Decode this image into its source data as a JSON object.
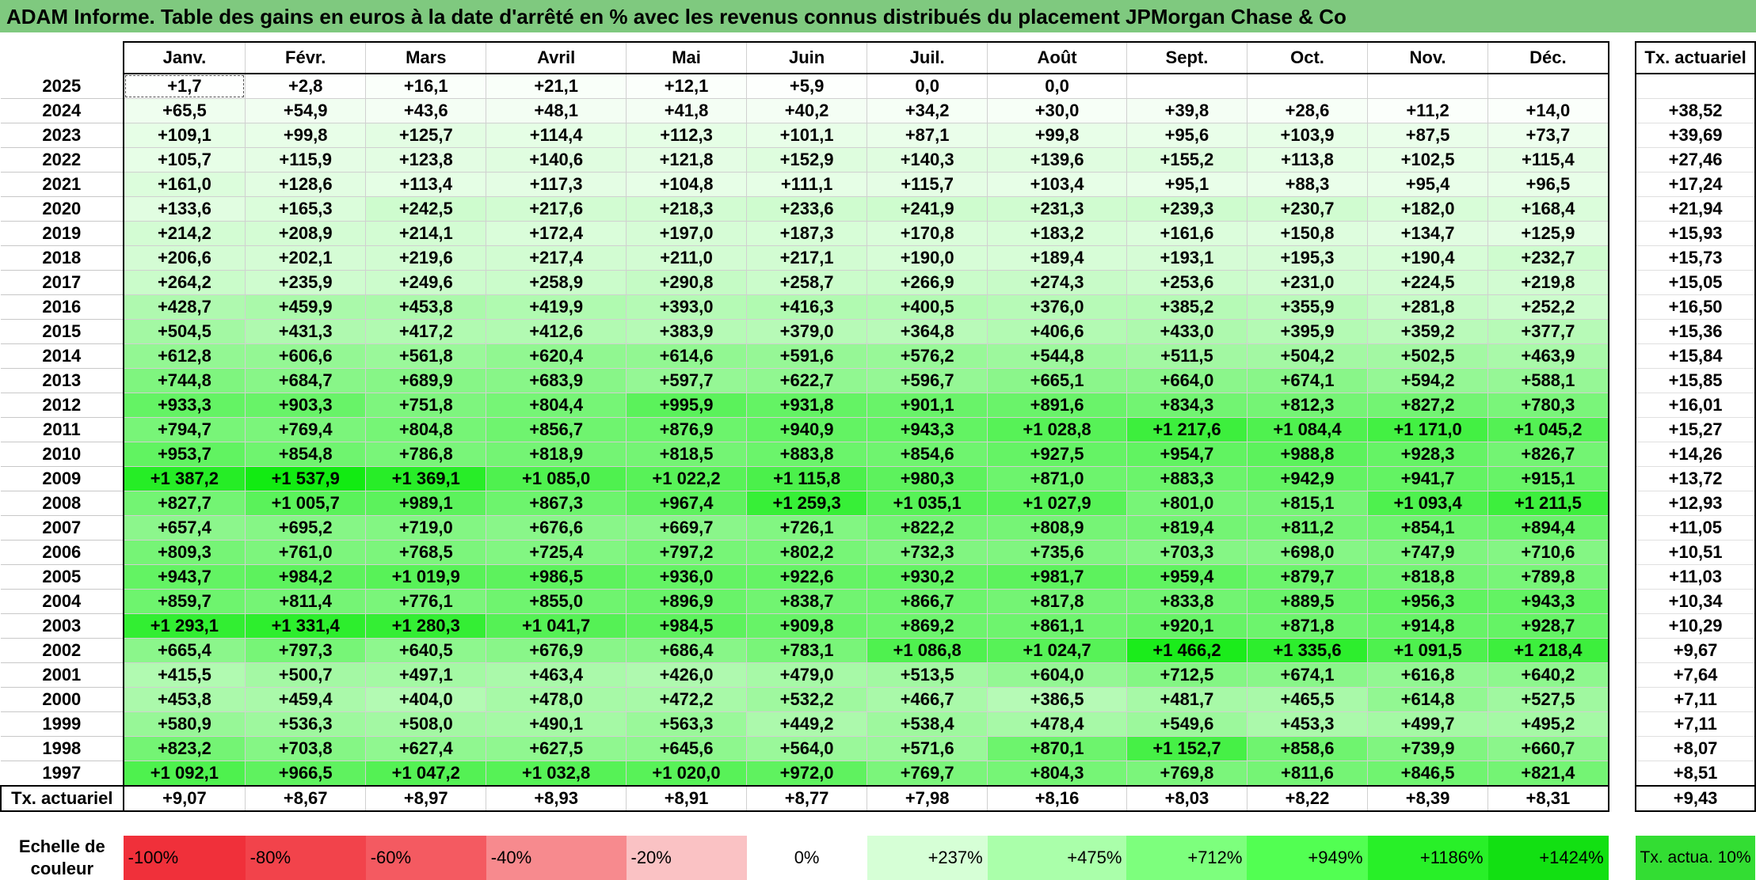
{
  "title": "ADAM Informe. Table des gains en euros à la date d'arrêté en % avec les revenus connus distribués du placement JPMorgan Chase & Co",
  "colors": {
    "title_bg": "#7fc97f",
    "white": "#ffffff"
  },
  "header": {
    "months": [
      "Janv.",
      "Févr.",
      "Mars",
      "Avril",
      "Mai",
      "Juin",
      "Juil.",
      "Août",
      "Sept.",
      "Oct.",
      "Nov.",
      "Déc."
    ],
    "tx_label": "Tx. actuariel"
  },
  "rows": [
    {
      "year": "2025",
      "values": [
        "+1,7",
        "+2,8",
        "+16,1",
        "+21,1",
        "+12,1",
        "+5,9",
        "0,0",
        "0,0",
        "",
        "",
        "",
        ""
      ],
      "tx": ""
    },
    {
      "year": "2024",
      "values": [
        "+65,5",
        "+54,9",
        "+43,6",
        "+48,1",
        "+41,8",
        "+40,2",
        "+34,2",
        "+30,0",
        "+39,8",
        "+28,6",
        "+11,2",
        "+14,0"
      ],
      "tx": "+38,52"
    },
    {
      "year": "2023",
      "values": [
        "+109,1",
        "+99,8",
        "+125,7",
        "+114,4",
        "+112,3",
        "+101,1",
        "+87,1",
        "+99,8",
        "+95,6",
        "+103,9",
        "+87,5",
        "+73,7"
      ],
      "tx": "+39,69"
    },
    {
      "year": "2022",
      "values": [
        "+105,7",
        "+115,9",
        "+123,8",
        "+140,6",
        "+121,8",
        "+152,9",
        "+140,3",
        "+139,6",
        "+155,2",
        "+113,8",
        "+102,5",
        "+115,4"
      ],
      "tx": "+27,46"
    },
    {
      "year": "2021",
      "values": [
        "+161,0",
        "+128,6",
        "+113,4",
        "+117,3",
        "+104,8",
        "+111,1",
        "+115,7",
        "+103,4",
        "+95,1",
        "+88,3",
        "+95,4",
        "+96,5"
      ],
      "tx": "+17,24"
    },
    {
      "year": "2020",
      "values": [
        "+133,6",
        "+165,3",
        "+242,5",
        "+217,6",
        "+218,3",
        "+233,6",
        "+241,9",
        "+231,3",
        "+239,3",
        "+230,7",
        "+182,0",
        "+168,4"
      ],
      "tx": "+21,94"
    },
    {
      "year": "2019",
      "values": [
        "+214,2",
        "+208,9",
        "+214,1",
        "+172,4",
        "+197,0",
        "+187,3",
        "+170,8",
        "+183,2",
        "+161,6",
        "+150,8",
        "+134,7",
        "+125,9"
      ],
      "tx": "+15,93"
    },
    {
      "year": "2018",
      "values": [
        "+206,6",
        "+202,1",
        "+219,6",
        "+217,4",
        "+211,0",
        "+217,1",
        "+190,0",
        "+189,4",
        "+193,1",
        "+195,3",
        "+190,4",
        "+232,7"
      ],
      "tx": "+15,73"
    },
    {
      "year": "2017",
      "values": [
        "+264,2",
        "+235,9",
        "+249,6",
        "+258,9",
        "+290,8",
        "+258,7",
        "+266,9",
        "+274,3",
        "+253,6",
        "+231,0",
        "+224,5",
        "+219,8"
      ],
      "tx": "+15,05"
    },
    {
      "year": "2016",
      "values": [
        "+428,7",
        "+459,9",
        "+453,8",
        "+419,9",
        "+393,0",
        "+416,3",
        "+400,5",
        "+376,0",
        "+385,2",
        "+355,9",
        "+281,8",
        "+252,2"
      ],
      "tx": "+16,50"
    },
    {
      "year": "2015",
      "values": [
        "+504,5",
        "+431,3",
        "+417,2",
        "+412,6",
        "+383,9",
        "+379,0",
        "+364,8",
        "+406,6",
        "+433,0",
        "+395,9",
        "+359,2",
        "+377,7"
      ],
      "tx": "+15,36"
    },
    {
      "year": "2014",
      "values": [
        "+612,8",
        "+606,6",
        "+561,8",
        "+620,4",
        "+614,6",
        "+591,6",
        "+576,2",
        "+544,8",
        "+511,5",
        "+504,2",
        "+502,5",
        "+463,9"
      ],
      "tx": "+15,84"
    },
    {
      "year": "2013",
      "values": [
        "+744,8",
        "+684,7",
        "+689,9",
        "+683,9",
        "+597,7",
        "+622,7",
        "+596,7",
        "+665,1",
        "+664,0",
        "+674,1",
        "+594,2",
        "+588,1"
      ],
      "tx": "+15,85"
    },
    {
      "year": "2012",
      "values": [
        "+933,3",
        "+903,3",
        "+751,8",
        "+804,4",
        "+995,9",
        "+931,8",
        "+901,1",
        "+891,6",
        "+834,3",
        "+812,3",
        "+827,2",
        "+780,3"
      ],
      "tx": "+16,01"
    },
    {
      "year": "2011",
      "values": [
        "+794,7",
        "+769,4",
        "+804,8",
        "+856,7",
        "+876,9",
        "+940,9",
        "+943,3",
        "+1 028,8",
        "+1 217,6",
        "+1 084,4",
        "+1 171,0",
        "+1 045,2"
      ],
      "tx": "+15,27"
    },
    {
      "year": "2010",
      "values": [
        "+953,7",
        "+854,8",
        "+786,8",
        "+818,9",
        "+818,5",
        "+883,8",
        "+854,6",
        "+927,5",
        "+954,7",
        "+988,8",
        "+928,3",
        "+826,7"
      ],
      "tx": "+14,26"
    },
    {
      "year": "2009",
      "values": [
        "+1 387,2",
        "+1 537,9",
        "+1 369,1",
        "+1 085,0",
        "+1 022,2",
        "+1 115,8",
        "+980,3",
        "+871,0",
        "+883,3",
        "+942,9",
        "+941,7",
        "+915,1"
      ],
      "tx": "+13,72"
    },
    {
      "year": "2008",
      "values": [
        "+827,7",
        "+1 005,7",
        "+989,1",
        "+867,3",
        "+967,4",
        "+1 259,3",
        "+1 035,1",
        "+1 027,9",
        "+801,0",
        "+815,1",
        "+1 093,4",
        "+1 211,5"
      ],
      "tx": "+12,93"
    },
    {
      "year": "2007",
      "values": [
        "+657,4",
        "+695,2",
        "+719,0",
        "+676,6",
        "+669,7",
        "+726,1",
        "+822,2",
        "+808,9",
        "+819,4",
        "+811,2",
        "+854,1",
        "+894,4"
      ],
      "tx": "+11,05"
    },
    {
      "year": "2006",
      "values": [
        "+809,3",
        "+761,0",
        "+768,5",
        "+725,4",
        "+797,2",
        "+802,2",
        "+732,3",
        "+735,6",
        "+703,3",
        "+698,0",
        "+747,9",
        "+710,6"
      ],
      "tx": "+10,51"
    },
    {
      "year": "2005",
      "values": [
        "+943,7",
        "+984,2",
        "+1 019,9",
        "+986,5",
        "+936,0",
        "+922,6",
        "+930,2",
        "+981,7",
        "+959,4",
        "+879,7",
        "+818,8",
        "+789,8"
      ],
      "tx": "+11,03"
    },
    {
      "year": "2004",
      "values": [
        "+859,7",
        "+811,4",
        "+776,1",
        "+855,0",
        "+896,9",
        "+838,7",
        "+866,7",
        "+817,8",
        "+833,8",
        "+889,5",
        "+956,3",
        "+943,3"
      ],
      "tx": "+10,34"
    },
    {
      "year": "2003",
      "values": [
        "+1 293,1",
        "+1 331,4",
        "+1 280,3",
        "+1 041,7",
        "+984,5",
        "+909,8",
        "+869,2",
        "+861,1",
        "+920,1",
        "+871,8",
        "+914,8",
        "+928,7"
      ],
      "tx": "+10,29"
    },
    {
      "year": "2002",
      "values": [
        "+665,4",
        "+797,3",
        "+640,5",
        "+676,9",
        "+686,4",
        "+783,1",
        "+1 086,8",
        "+1 024,7",
        "+1 466,2",
        "+1 335,6",
        "+1 091,5",
        "+1 218,4"
      ],
      "tx": "+9,67"
    },
    {
      "year": "2001",
      "values": [
        "+415,5",
        "+500,7",
        "+497,1",
        "+463,4",
        "+426,0",
        "+479,0",
        "+513,5",
        "+604,0",
        "+712,5",
        "+674,1",
        "+616,8",
        "+640,2"
      ],
      "tx": "+7,64"
    },
    {
      "year": "2000",
      "values": [
        "+453,8",
        "+459,4",
        "+404,0",
        "+478,0",
        "+472,2",
        "+532,2",
        "+466,7",
        "+386,5",
        "+481,7",
        "+465,5",
        "+614,8",
        "+527,5"
      ],
      "tx": "+7,11"
    },
    {
      "year": "1999",
      "values": [
        "+580,9",
        "+536,3",
        "+508,0",
        "+490,1",
        "+563,3",
        "+449,2",
        "+538,4",
        "+478,4",
        "+549,6",
        "+453,3",
        "+499,7",
        "+495,2"
      ],
      "tx": "+7,11"
    },
    {
      "year": "1998",
      "values": [
        "+823,2",
        "+703,8",
        "+627,4",
        "+627,5",
        "+645,6",
        "+564,0",
        "+571,6",
        "+870,1",
        "+1 152,7",
        "+858,6",
        "+739,9",
        "+660,7"
      ],
      "tx": "+8,07"
    },
    {
      "year": "1997",
      "values": [
        "+1 092,1",
        "+966,5",
        "+1 047,2",
        "+1 032,8",
        "+1 020,0",
        "+972,0",
        "+769,7",
        "+804,3",
        "+769,8",
        "+811,6",
        "+846,5",
        "+821,4"
      ],
      "tx": "+8,51"
    }
  ],
  "footer": {
    "label": "Tx. actuariel",
    "values": [
      "+9,07",
      "+8,67",
      "+8,97",
      "+8,93",
      "+8,91",
      "+8,77",
      "+7,98",
      "+8,16",
      "+8,03",
      "+8,22",
      "+8,39",
      "+8,31"
    ],
    "tx": "+9,43"
  },
  "legend": {
    "label": "Echelle de couleur",
    "cells": [
      {
        "text": "-100%",
        "color": "#f0303a",
        "kind": "neg"
      },
      {
        "text": "-80%",
        "color": "#f2434b",
        "kind": "neg"
      },
      {
        "text": "-60%",
        "color": "#f45a61",
        "kind": "neg"
      },
      {
        "text": "-40%",
        "color": "#f78a8e",
        "kind": "neg"
      },
      {
        "text": "-20%",
        "color": "#fac2c4",
        "kind": "neg"
      },
      {
        "text": "0%",
        "color": "#ffffff",
        "kind": "zero"
      },
      {
        "text": "+237%",
        "color": "#d6ffd6",
        "kind": "pos"
      },
      {
        "text": "+475%",
        "color": "#aaffaa",
        "kind": "pos"
      },
      {
        "text": "+712%",
        "color": "#7dff7d",
        "kind": "pos"
      },
      {
        "text": "+949%",
        "color": "#52ff52",
        "kind": "pos"
      },
      {
        "text": "+1186%",
        "color": "#28f028",
        "kind": "pos"
      },
      {
        "text": "+1424%",
        "color": "#12e012",
        "kind": "pos"
      }
    ],
    "tx_text": "Tx. actua. 10%",
    "tx_color": "#33dd33"
  }
}
